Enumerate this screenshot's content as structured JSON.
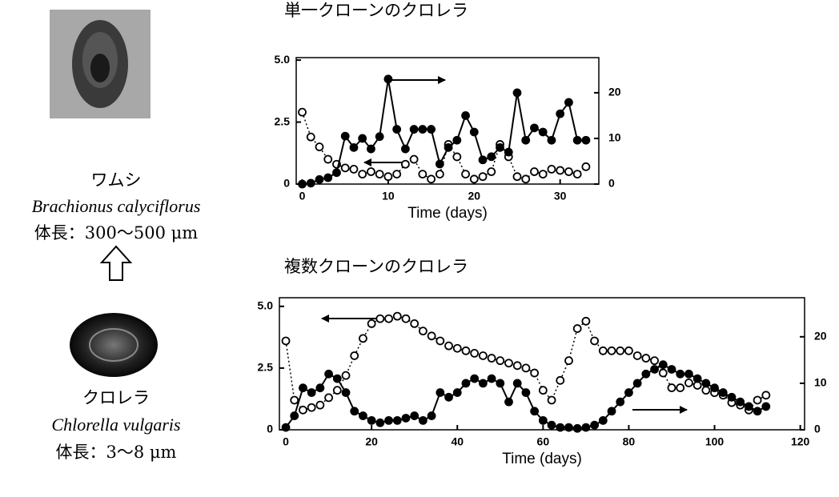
{
  "organisms": [
    {
      "name": "ワムシ",
      "species": "Brachionus calyciflorus",
      "size": "体長：300～500 μm"
    },
    {
      "name": "クロレラ",
      "species": "Chlorella vulgaris",
      "size": "体長：3～8 μm"
    }
  ],
  "chart_data": [
    {
      "type": "line",
      "title": "単一クローンのクロレラ",
      "xlabel": "Time (days)",
      "xlim": [
        -0.7,
        34.5
      ],
      "xticks": [
        0,
        10,
        20,
        30
      ],
      "ylim": [
        0,
        5.1
      ],
      "yticks": [
        0,
        2.5,
        {
          "value": 5,
          "label": "5.0"
        }
      ],
      "y2lim": [
        0,
        27.7
      ],
      "y2ticks": [
        0,
        10,
        20
      ],
      "x": [
        0,
        1,
        2,
        3,
        4,
        5,
        6,
        7,
        8,
        9,
        10,
        11,
        12,
        13,
        14,
        15,
        16,
        17,
        18,
        19,
        20,
        21,
        22,
        23,
        24,
        25,
        26,
        27,
        28,
        29,
        30,
        31,
        32,
        33
      ],
      "series": [
        {
          "color": "#000000",
          "marker": "open",
          "line_style": "dotted",
          "values": [
            2.9,
            1.9,
            1.5,
            1.0,
            0.8,
            0.65,
            0.6,
            0.4,
            0.5,
            0.4,
            0.3,
            0.4,
            0.8,
            1.0,
            0.4,
            0.2,
            0.4,
            1.6,
            1.1,
            0.4,
            0.2,
            0.3,
            0.5,
            1.6,
            1.1,
            0.3,
            0.2,
            0.5,
            0.4,
            0.6,
            0.55,
            0.5,
            0.4,
            0.7
          ]
        },
        {
          "color": "#000000",
          "marker": "filled",
          "line_style": "solid",
          "axis": "y2",
          "values": [
            0,
            0.2,
            1,
            1.4,
            2.5,
            10.5,
            8,
            10,
            7.7,
            10.4,
            23,
            12,
            7.7,
            12,
            12,
            12,
            4.4,
            8,
            9.6,
            15,
            11.4,
            5.3,
            6,
            8,
            7,
            20,
            9.6,
            12.3,
            11.4,
            9.6,
            15.4,
            17.9,
            9.6,
            9.6
          ]
        }
      ]
    },
    {
      "type": "line",
      "title": "複数クローンのクロレラ",
      "xlabel": "Time (days)",
      "xlim": [
        -1.5,
        121
      ],
      "xticks": [
        0,
        20,
        40,
        60,
        80,
        100,
        120
      ],
      "ylim": [
        0,
        5.35
      ],
      "yticks": [
        0,
        2.5,
        {
          "value": 5,
          "label": "5.0"
        }
      ],
      "y2lim": [
        0,
        28.4
      ],
      "y2ticks": [
        0,
        10,
        20
      ],
      "x": [
        0,
        2,
        4,
        6,
        8,
        10,
        12,
        14,
        16,
        18,
        20,
        22,
        24,
        26,
        28,
        30,
        32,
        34,
        36,
        38,
        40,
        42,
        44,
        46,
        48,
        50,
        52,
        54,
        56,
        58,
        60,
        62,
        64,
        66,
        68,
        70,
        72,
        74,
        76,
        78,
        80,
        82,
        84,
        86,
        88,
        90,
        92,
        94,
        96,
        98,
        100,
        102,
        104,
        106,
        108,
        110,
        112
      ],
      "series": [
        {
          "color": "#000000",
          "marker": "open",
          "line_style": "dotted",
          "values": [
            3.6,
            1.2,
            0.8,
            0.9,
            1.0,
            1.3,
            1.6,
            2.2,
            3.0,
            3.7,
            4.3,
            4.5,
            4.5,
            4.6,
            4.5,
            4.3,
            4.0,
            3.8,
            3.6,
            3.4,
            3.3,
            3.2,
            3.1,
            3.0,
            2.9,
            2.8,
            2.7,
            2.6,
            2.5,
            2.3,
            1.6,
            1.2,
            2.0,
            2.8,
            4.1,
            4.4,
            3.6,
            3.2,
            3.2,
            3.2,
            3.2,
            3.0,
            2.9,
            2.8,
            2.3,
            1.7,
            1.7,
            1.9,
            1.8,
            1.6,
            1.5,
            1.4,
            1.1,
            1.0,
            0.8,
            1.2,
            1.4
          ]
        },
        {
          "color": "#000000",
          "marker": "filled",
          "line_style": "solid",
          "axis": "y2",
          "values": [
            0.5,
            3,
            9,
            8,
            9,
            12,
            11,
            8,
            4,
            3,
            2,
            1.5,
            2,
            2,
            2.5,
            3,
            2,
            3,
            8,
            7,
            8,
            10,
            11,
            10,
            11,
            10,
            6,
            10,
            8,
            4,
            2,
            1,
            0.5,
            0.5,
            0.3,
            0.5,
            1,
            2,
            4,
            6,
            8,
            10,
            12,
            13,
            14,
            13,
            12,
            12,
            11,
            10,
            9,
            8,
            7,
            6,
            5,
            4,
            5
          ]
        }
      ]
    }
  ]
}
